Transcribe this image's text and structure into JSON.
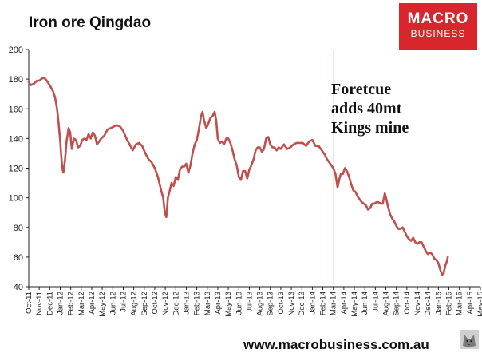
{
  "chart_data": {
    "type": "line",
    "title": "Iron ore Qingdao",
    "xlabel": "",
    "ylabel": "",
    "ylim": [
      40,
      200
    ],
    "yticks": [
      40,
      60,
      80,
      100,
      120,
      140,
      160,
      180,
      200
    ],
    "grid": false,
    "x_categories": [
      "Oct-11",
      "Nov-11",
      "Dec-11",
      "Jan-12",
      "Feb-12",
      "Mar-12",
      "Apr-12",
      "May-12",
      "Jun-12",
      "Jul-12",
      "Aug-12",
      "Sep-12",
      "Oct-12",
      "Nov-12",
      "Dec-12",
      "Jan-13",
      "Feb-13",
      "Mar-13",
      "Apr-13",
      "May-13",
      "Jun-13",
      "Jul-13",
      "Aug-13",
      "Sep-13",
      "Oct-13",
      "Nov-13",
      "Dec-13",
      "Jan-14",
      "Feb-14",
      "Mar-14",
      "Apr-14",
      "May-14",
      "Jun-14",
      "Jul-14",
      "Aug-14",
      "Sep-14",
      "Oct-14",
      "Nov-14",
      "Dec-14",
      "Jan-15",
      "Feb-15",
      "Mar-15",
      "Apr-15",
      "May-15"
    ],
    "series": [
      {
        "color": "#c0504d",
        "points": [
          [
            0,
            178
          ],
          [
            0.2,
            176
          ],
          [
            0.5,
            177
          ],
          [
            0.8,
            179
          ],
          [
            1.0,
            179
          ],
          [
            1.2,
            180
          ],
          [
            1.4,
            181
          ],
          [
            1.6,
            180
          ],
          [
            1.8,
            178
          ],
          [
            2.0,
            176
          ],
          [
            2.3,
            172
          ],
          [
            2.5,
            168
          ],
          [
            2.7,
            160
          ],
          [
            2.85,
            150
          ],
          [
            3.0,
            138
          ],
          [
            3.1,
            128
          ],
          [
            3.2,
            120
          ],
          [
            3.3,
            117
          ],
          [
            3.45,
            125
          ],
          [
            3.6,
            138
          ],
          [
            3.8,
            147
          ],
          [
            3.95,
            144
          ],
          [
            4.1,
            133
          ],
          [
            4.3,
            140
          ],
          [
            4.5,
            139
          ],
          [
            4.7,
            134
          ],
          [
            4.9,
            135
          ],
          [
            5.1,
            139
          ],
          [
            5.3,
            140
          ],
          [
            5.5,
            139
          ],
          [
            5.7,
            143
          ],
          [
            5.9,
            140
          ],
          [
            6.1,
            144
          ],
          [
            6.3,
            142
          ],
          [
            6.5,
            136
          ],
          [
            6.7,
            138
          ],
          [
            6.9,
            140
          ],
          [
            7.2,
            142
          ],
          [
            7.5,
            146
          ],
          [
            7.8,
            147
          ],
          [
            8.1,
            148
          ],
          [
            8.4,
            149
          ],
          [
            8.7,
            148
          ],
          [
            9.0,
            145
          ],
          [
            9.3,
            140
          ],
          [
            9.6,
            136
          ],
          [
            9.9,
            132
          ],
          [
            10.2,
            136
          ],
          [
            10.5,
            137
          ],
          [
            10.8,
            135
          ],
          [
            11.1,
            130
          ],
          [
            11.4,
            126
          ],
          [
            11.7,
            124
          ],
          [
            12.0,
            120
          ],
          [
            12.3,
            114
          ],
          [
            12.6,
            105
          ],
          [
            12.8,
            100
          ],
          [
            12.95,
            90
          ],
          [
            13.1,
            87
          ],
          [
            13.25,
            100
          ],
          [
            13.4,
            104
          ],
          [
            13.6,
            110
          ],
          [
            13.8,
            108
          ],
          [
            14.0,
            114
          ],
          [
            14.2,
            112
          ],
          [
            14.4,
            119
          ],
          [
            14.6,
            121
          ],
          [
            14.8,
            121
          ],
          [
            15.0,
            123
          ],
          [
            15.2,
            117
          ],
          [
            15.4,
            122
          ],
          [
            15.6,
            130
          ],
          [
            15.8,
            136
          ],
          [
            16.0,
            139
          ],
          [
            16.2,
            146
          ],
          [
            16.4,
            155
          ],
          [
            16.55,
            158
          ],
          [
            16.7,
            152
          ],
          [
            16.9,
            147
          ],
          [
            17.1,
            150
          ],
          [
            17.3,
            154
          ],
          [
            17.5,
            155
          ],
          [
            17.7,
            158
          ],
          [
            17.85,
            152
          ],
          [
            18.0,
            140
          ],
          [
            18.2,
            137
          ],
          [
            18.4,
            138
          ],
          [
            18.6,
            136
          ],
          [
            18.8,
            140
          ],
          [
            19.0,
            140
          ],
          [
            19.2,
            137
          ],
          [
            19.4,
            132
          ],
          [
            19.6,
            126
          ],
          [
            19.8,
            122
          ],
          [
            20.0,
            114
          ],
          [
            20.2,
            112
          ],
          [
            20.4,
            118
          ],
          [
            20.6,
            118
          ],
          [
            20.8,
            113
          ],
          [
            21.0,
            119
          ],
          [
            21.2,
            122
          ],
          [
            21.4,
            126
          ],
          [
            21.6,
            132
          ],
          [
            21.8,
            134
          ],
          [
            22.0,
            134
          ],
          [
            22.2,
            131
          ],
          [
            22.4,
            133
          ],
          [
            22.6,
            140
          ],
          [
            22.8,
            141
          ],
          [
            23.0,
            136
          ],
          [
            23.2,
            134
          ],
          [
            23.4,
            134
          ],
          [
            23.6,
            132
          ],
          [
            23.8,
            134
          ],
          [
            24.0,
            133
          ],
          [
            24.3,
            136
          ],
          [
            24.6,
            133
          ],
          [
            24.9,
            134
          ],
          [
            25.2,
            136
          ],
          [
            25.5,
            137
          ],
          [
            25.8,
            137
          ],
          [
            26.1,
            137
          ],
          [
            26.4,
            135
          ],
          [
            26.7,
            138
          ],
          [
            27.0,
            139
          ],
          [
            27.3,
            135
          ],
          [
            27.6,
            135
          ],
          [
            27.8,
            133
          ],
          [
            28.0,
            131
          ],
          [
            28.2,
            129
          ],
          [
            28.4,
            126
          ],
          [
            28.6,
            124
          ],
          [
            28.8,
            122
          ],
          [
            29.0,
            120
          ],
          [
            29.2,
            116
          ],
          [
            29.4,
            107
          ],
          [
            29.55,
            112
          ],
          [
            29.7,
            116
          ],
          [
            29.9,
            116
          ],
          [
            30.1,
            120
          ],
          [
            30.3,
            118
          ],
          [
            30.5,
            114
          ],
          [
            30.7,
            109
          ],
          [
            30.9,
            105
          ],
          [
            31.1,
            104
          ],
          [
            31.3,
            101
          ],
          [
            31.5,
            99
          ],
          [
            31.7,
            97
          ],
          [
            31.9,
            96
          ],
          [
            32.1,
            95
          ],
          [
            32.3,
            92
          ],
          [
            32.5,
            93
          ],
          [
            32.7,
            96
          ],
          [
            32.9,
            96
          ],
          [
            33.1,
            97
          ],
          [
            33.3,
            97
          ],
          [
            33.5,
            96
          ],
          [
            33.7,
            96
          ],
          [
            33.9,
            103
          ],
          [
            34.05,
            99
          ],
          [
            34.2,
            94
          ],
          [
            34.4,
            89
          ],
          [
            34.6,
            86
          ],
          [
            34.8,
            84
          ],
          [
            35.0,
            81
          ],
          [
            35.2,
            79
          ],
          [
            35.4,
            79
          ],
          [
            35.6,
            80
          ],
          [
            35.8,
            77
          ],
          [
            36.0,
            74
          ],
          [
            36.2,
            72
          ],
          [
            36.4,
            71
          ],
          [
            36.6,
            73
          ],
          [
            36.8,
            70
          ],
          [
            37.0,
            69
          ],
          [
            37.2,
            70
          ],
          [
            37.4,
            70
          ],
          [
            37.6,
            67
          ],
          [
            37.8,
            64
          ],
          [
            38.0,
            62
          ],
          [
            38.2,
            63
          ],
          [
            38.4,
            62
          ],
          [
            38.6,
            59
          ],
          [
            38.8,
            58
          ],
          [
            39.0,
            56
          ],
          [
            39.2,
            51
          ],
          [
            39.35,
            48
          ],
          [
            39.5,
            49
          ],
          [
            39.65,
            54
          ],
          [
            39.8,
            57
          ],
          [
            39.9,
            60
          ]
        ]
      }
    ],
    "annotation": {
      "lines": [
        "Foretcue",
        "adds 40mt",
        "Kings mine"
      ],
      "vline_x": 29.05,
      "vline_color": "#cc0000"
    }
  },
  "logo": {
    "line1": "MACRO",
    "line2": "BUSINESS",
    "bg_color": "#d9262c"
  },
  "footer": {
    "url": "www.macrobusiness.com.au"
  }
}
